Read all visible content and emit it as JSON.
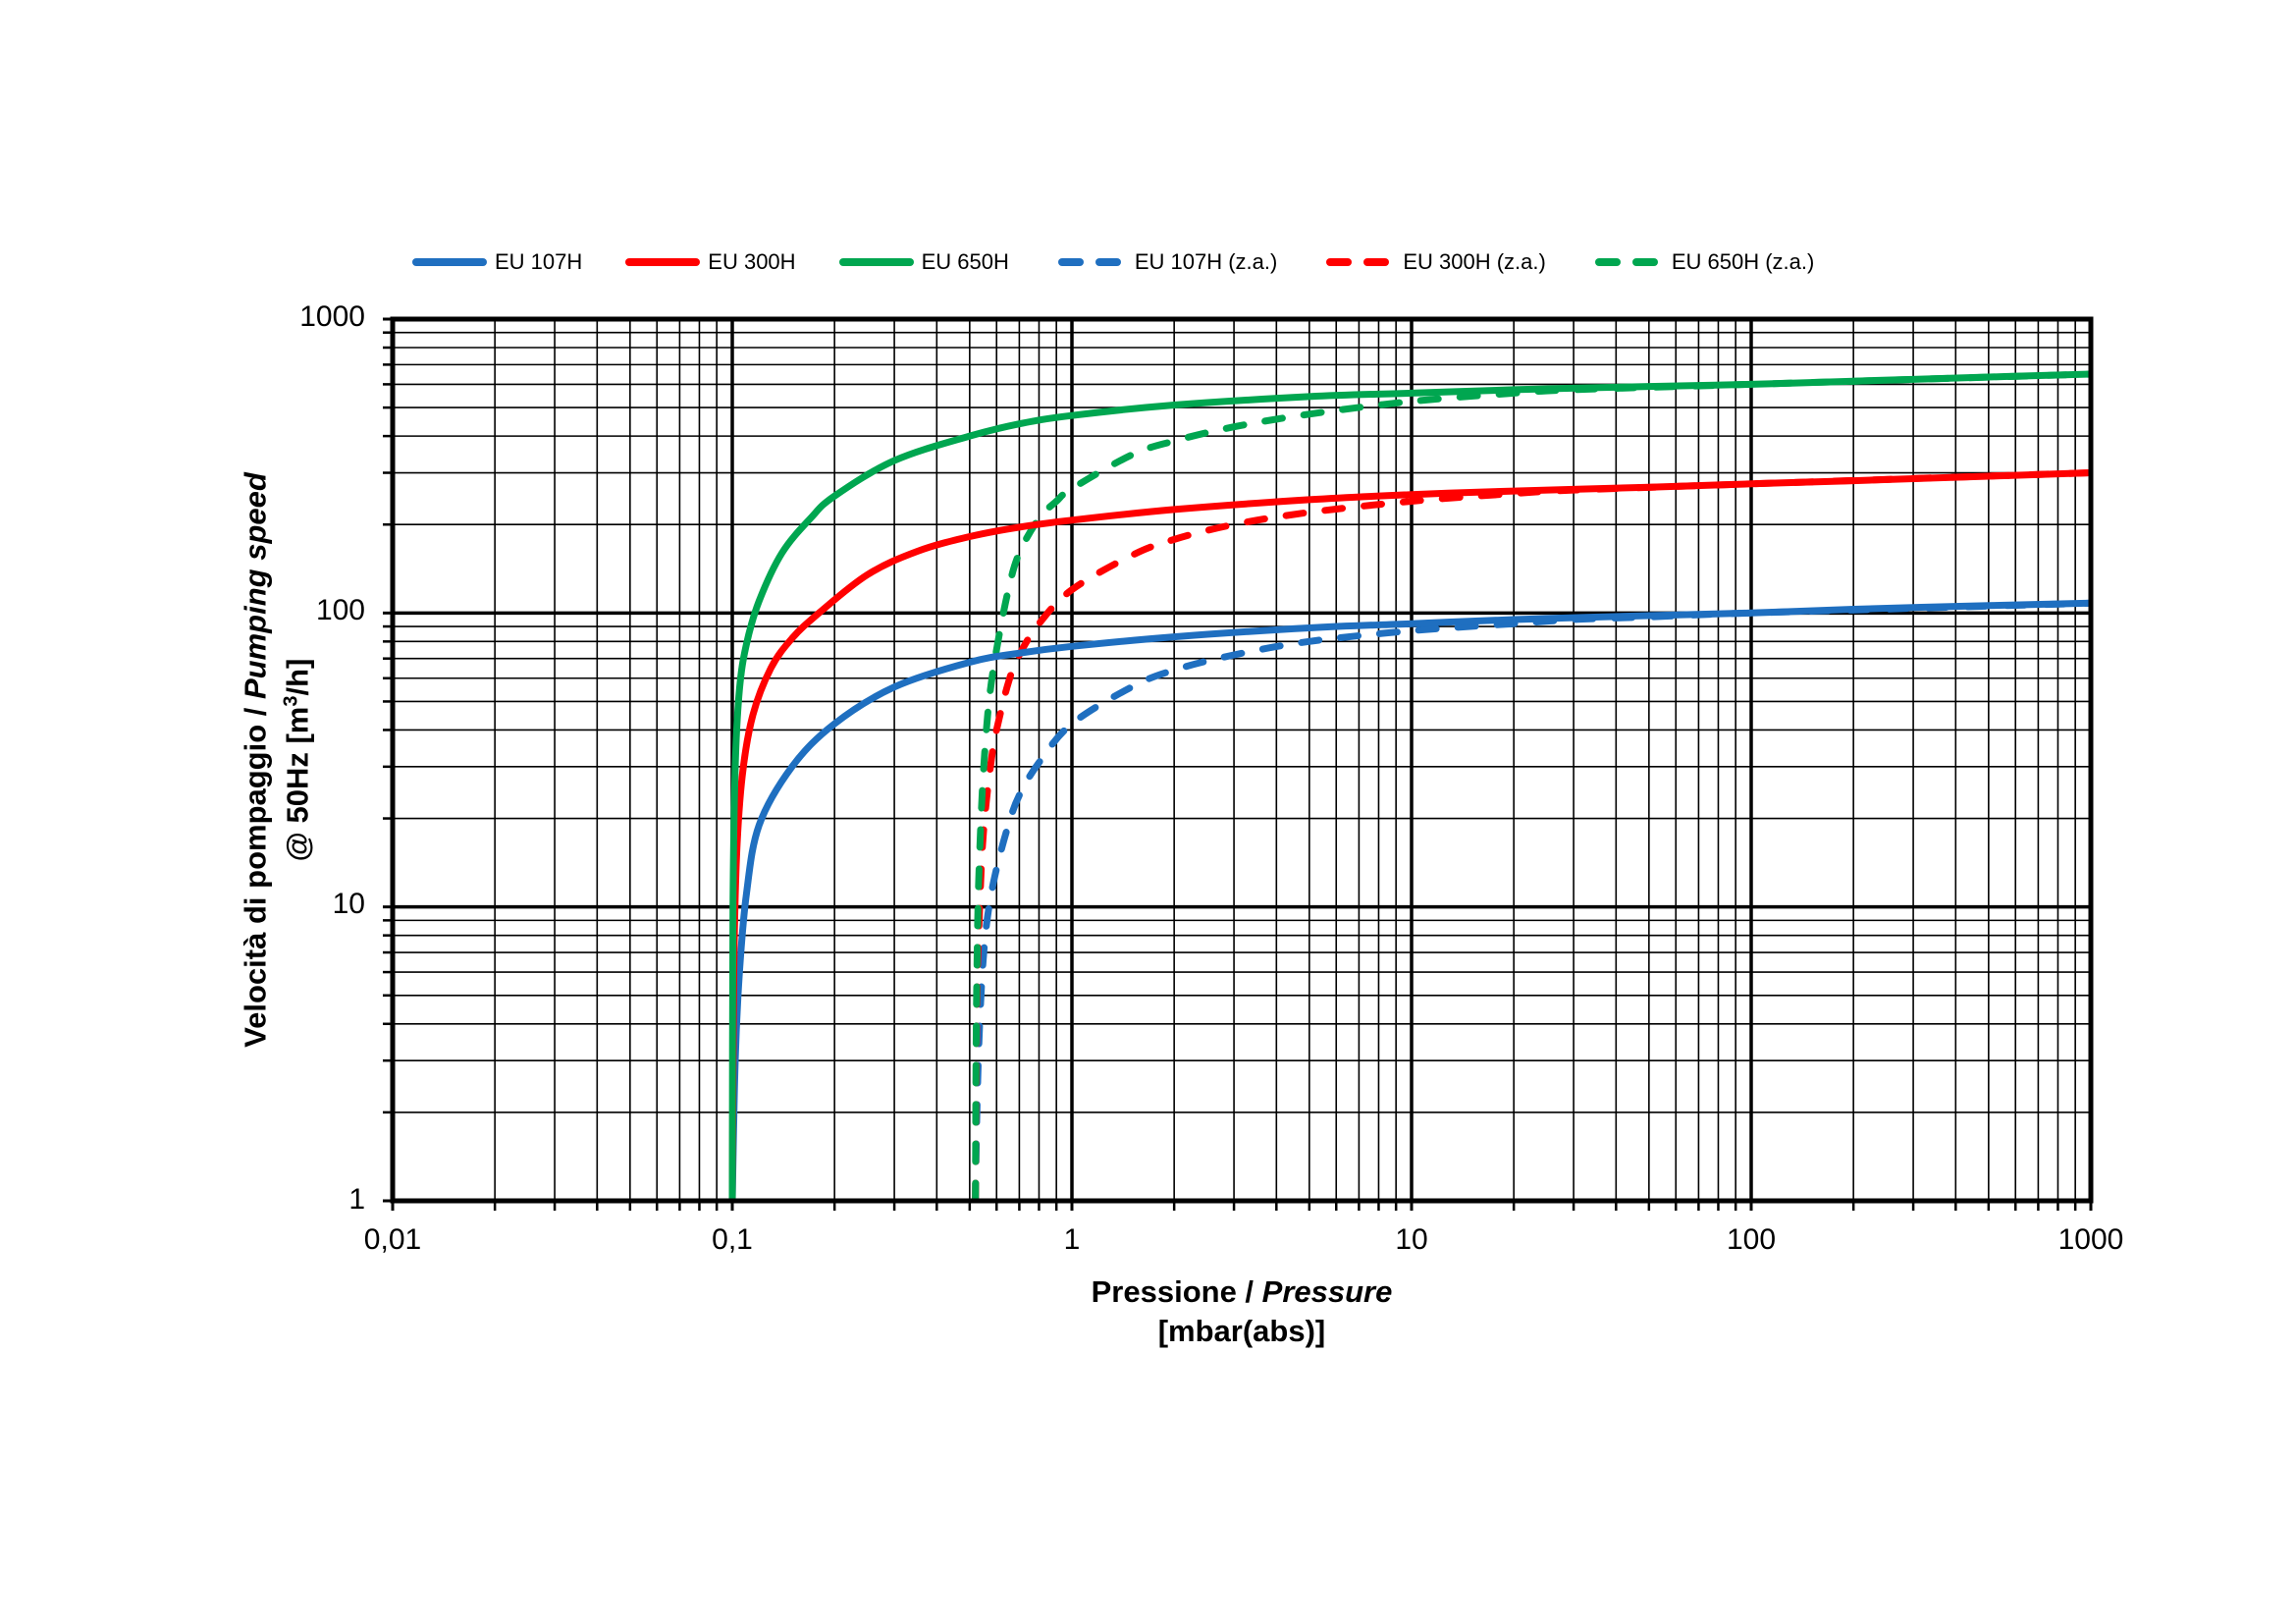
{
  "legend": [
    {
      "label": "EU 107H",
      "color": "#1f6fc0",
      "style": "solid"
    },
    {
      "label": "EU 300H",
      "color": "#ff0000",
      "style": "solid"
    },
    {
      "label": "EU 650H",
      "color": "#00a650",
      "style": "solid"
    },
    {
      "label": "EU 107H (z.a.)",
      "color": "#1f6fc0",
      "style": "dashed"
    },
    {
      "label": "EU 300H (z.a.)",
      "color": "#ff0000",
      "style": "dashed"
    },
    {
      "label": "EU 650H (z.a.)",
      "color": "#00a650",
      "style": "dashed"
    }
  ],
  "axes": {
    "y_label_line1_plain": "Velocità di pompaggio / ",
    "y_label_line1_italic": "Pumping speed",
    "y_label_line2_pre": "@ 50Hz [m",
    "y_label_line2_sup": "3",
    "y_label_line2_post": "/h]",
    "x_label_line1_plain": "Pressione / ",
    "x_label_line1_italic": "Pressure",
    "x_label_line2": "[mbar(abs)]",
    "y_ticks": [
      "1000",
      "100",
      "10",
      "1"
    ],
    "x_ticks": [
      "0,01",
      "0,1",
      "1",
      "10",
      "100",
      "1000"
    ]
  },
  "chart_data": {
    "type": "line",
    "title": "",
    "xlabel": "Pressione / Pressure [mbar(abs)]",
    "ylabel": "Velocità di pompaggio / Pumping speed @ 50Hz [m3/h]",
    "x_scale": "log",
    "y_scale": "log",
    "xlim": [
      0.01,
      1000
    ],
    "ylim": [
      1,
      1000
    ],
    "x_tick_labels": [
      "0,01",
      "0,1",
      "1",
      "10",
      "100",
      "1000"
    ],
    "y_tick_labels": [
      "1",
      "10",
      "100",
      "1000"
    ],
    "grid": true,
    "legend_position": "top",
    "series": [
      {
        "name": "EU 107H",
        "style": "solid",
        "color": "#1f6fc0",
        "x": [
          0.1,
          0.102,
          0.105,
          0.11,
          0.12,
          0.15,
          0.2,
          0.3,
          0.5,
          0.7,
          1,
          2,
          5,
          10,
          20,
          50,
          100,
          200,
          500,
          1000
        ],
        "y": [
          1,
          3,
          6,
          11,
          19,
          30,
          42,
          56,
          68,
          73,
          77,
          83,
          89,
          92,
          95,
          98,
          100,
          103,
          106,
          108
        ]
      },
      {
        "name": "EU 300H",
        "style": "solid",
        "color": "#ff0000",
        "x": [
          0.1,
          0.101,
          0.103,
          0.107,
          0.115,
          0.13,
          0.15,
          0.18,
          0.25,
          0.35,
          0.5,
          0.7,
          1,
          2,
          5,
          10,
          20,
          50,
          100,
          200,
          500,
          1000
        ],
        "y": [
          1,
          6,
          15,
          28,
          45,
          65,
          82,
          100,
          135,
          162,
          182,
          196,
          207,
          225,
          243,
          253,
          260,
          268,
          275,
          282,
          292,
          300
        ]
      },
      {
        "name": "EU 650H",
        "style": "solid",
        "color": "#00a650",
        "x": [
          0.1,
          0.1005,
          0.102,
          0.105,
          0.11,
          0.12,
          0.14,
          0.17,
          0.2,
          0.3,
          0.5,
          0.7,
          1,
          2,
          5,
          10,
          20,
          50,
          100,
          200,
          500,
          1000
        ],
        "y": [
          1,
          10,
          30,
          55,
          78,
          110,
          160,
          210,
          250,
          330,
          400,
          440,
          470,
          510,
          545,
          560,
          575,
          590,
          600,
          615,
          635,
          650
        ]
      },
      {
        "name": "EU 107H (z.a.)",
        "style": "dashed",
        "color": "#1f6fc0",
        "x": [
          0.52,
          0.525,
          0.535,
          0.55,
          0.57,
          0.6,
          0.65,
          0.7,
          0.8,
          1,
          1.5,
          2,
          3,
          5,
          10,
          20,
          30,
          50,
          100,
          1000
        ],
        "y": [
          1,
          2,
          4,
          7,
          10,
          13.5,
          19,
          24,
          31,
          42,
          56,
          64,
          72,
          80,
          87,
          92,
          95,
          97,
          100,
          108
        ]
      },
      {
        "name": "EU 300H (z.a.)",
        "style": "dashed",
        "color": "#ff0000",
        "x": [
          0.52,
          0.523,
          0.527,
          0.535,
          0.545,
          0.56,
          0.58,
          0.6,
          0.65,
          0.7,
          0.8,
          1,
          1.5,
          2,
          3,
          5,
          10,
          20,
          30,
          100,
          1000
        ],
        "y": [
          1,
          3,
          6,
          10,
          16,
          23,
          32,
          40,
          58,
          72,
          92,
          120,
          157,
          178,
          200,
          220,
          240,
          255,
          262,
          275,
          300
        ]
      },
      {
        "name": "EU 650H (z.a.)",
        "style": "dashed",
        "color": "#00a650",
        "x": [
          0.52,
          0.522,
          0.525,
          0.53,
          0.54,
          0.55,
          0.57,
          0.6,
          0.65,
          0.7,
          0.8,
          0.9,
          1,
          1.5,
          2,
          3,
          5,
          10,
          20,
          30,
          100,
          1000
        ],
        "y": [
          1,
          3,
          6,
          11,
          20,
          30,
          50,
          75,
          120,
          160,
          210,
          240,
          265,
          345,
          385,
          430,
          475,
          525,
          560,
          575,
          600,
          650
        ]
      }
    ]
  }
}
